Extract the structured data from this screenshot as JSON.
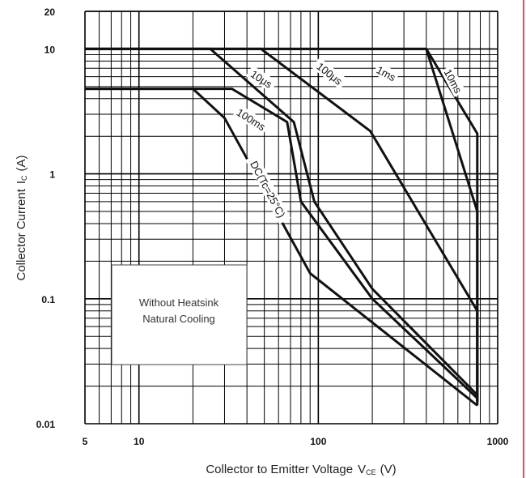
{
  "chart_data": {
    "type": "line",
    "x_scale": "log",
    "y_scale": "log",
    "xlim": [
      5,
      1000
    ],
    "ylim": [
      0.01,
      20
    ],
    "grid": true,
    "xlabel": "Collector to Emitter Voltage",
    "xlabel_symbol": "V",
    "xlabel_subscript": "CE",
    "xlabel_unit": "(V)",
    "ylabel": "Collector Current",
    "ylabel_symbol": "I",
    "ylabel_subscript": "C",
    "ylabel_unit": "(A)",
    "x_ticks": [
      {
        "value": 5,
        "label": "5"
      },
      {
        "value": 10,
        "label": "10"
      },
      {
        "value": 100,
        "label": "100"
      },
      {
        "value": 1000,
        "label": "1000"
      }
    ],
    "y_ticks": [
      {
        "value": 20,
        "label": "20"
      },
      {
        "value": 10,
        "label": "10"
      },
      {
        "value": 1,
        "label": "1"
      },
      {
        "value": 0.1,
        "label": "0.1"
      },
      {
        "value": 0.01,
        "label": "0.01"
      }
    ],
    "series": [
      {
        "name": "10μs",
        "x": [
          5,
          400,
          770,
          770
        ],
        "y": [
          10,
          10,
          2.1,
          0.015
        ]
      },
      {
        "name": "100μs",
        "x": [
          5,
          400,
          770,
          770
        ],
        "y": [
          10,
          10,
          0.5,
          0.015
        ]
      },
      {
        "name": "1ms",
        "x": [
          5,
          48,
          195,
          770,
          770
        ],
        "y": [
          10,
          10,
          2.2,
          0.08,
          0.015
        ]
      },
      {
        "name": "10ms",
        "x": [
          5,
          25,
          73,
          95,
          200,
          770,
          770
        ],
        "y": [
          10,
          10,
          2.6,
          0.6,
          0.12,
          0.017,
          0.014
        ]
      },
      {
        "name": "100ms",
        "x": [
          5,
          33,
          67,
          80,
          200,
          770
        ],
        "y": [
          4.8,
          4.8,
          2.6,
          0.6,
          0.1,
          0.016
        ]
      },
      {
        "name": "DC(Tc=25°C)",
        "x": [
          5,
          20,
          30,
          90,
          770
        ],
        "y": [
          4.8,
          4.8,
          2.8,
          0.16,
          0.014
        ]
      }
    ],
    "annotations": [
      "10ms",
      "1ms",
      "100μs",
      "10μs",
      "100ms",
      "DC(Tc=25°C)"
    ],
    "note_box": [
      "Without Heatsink",
      "Natural Cooling"
    ]
  }
}
